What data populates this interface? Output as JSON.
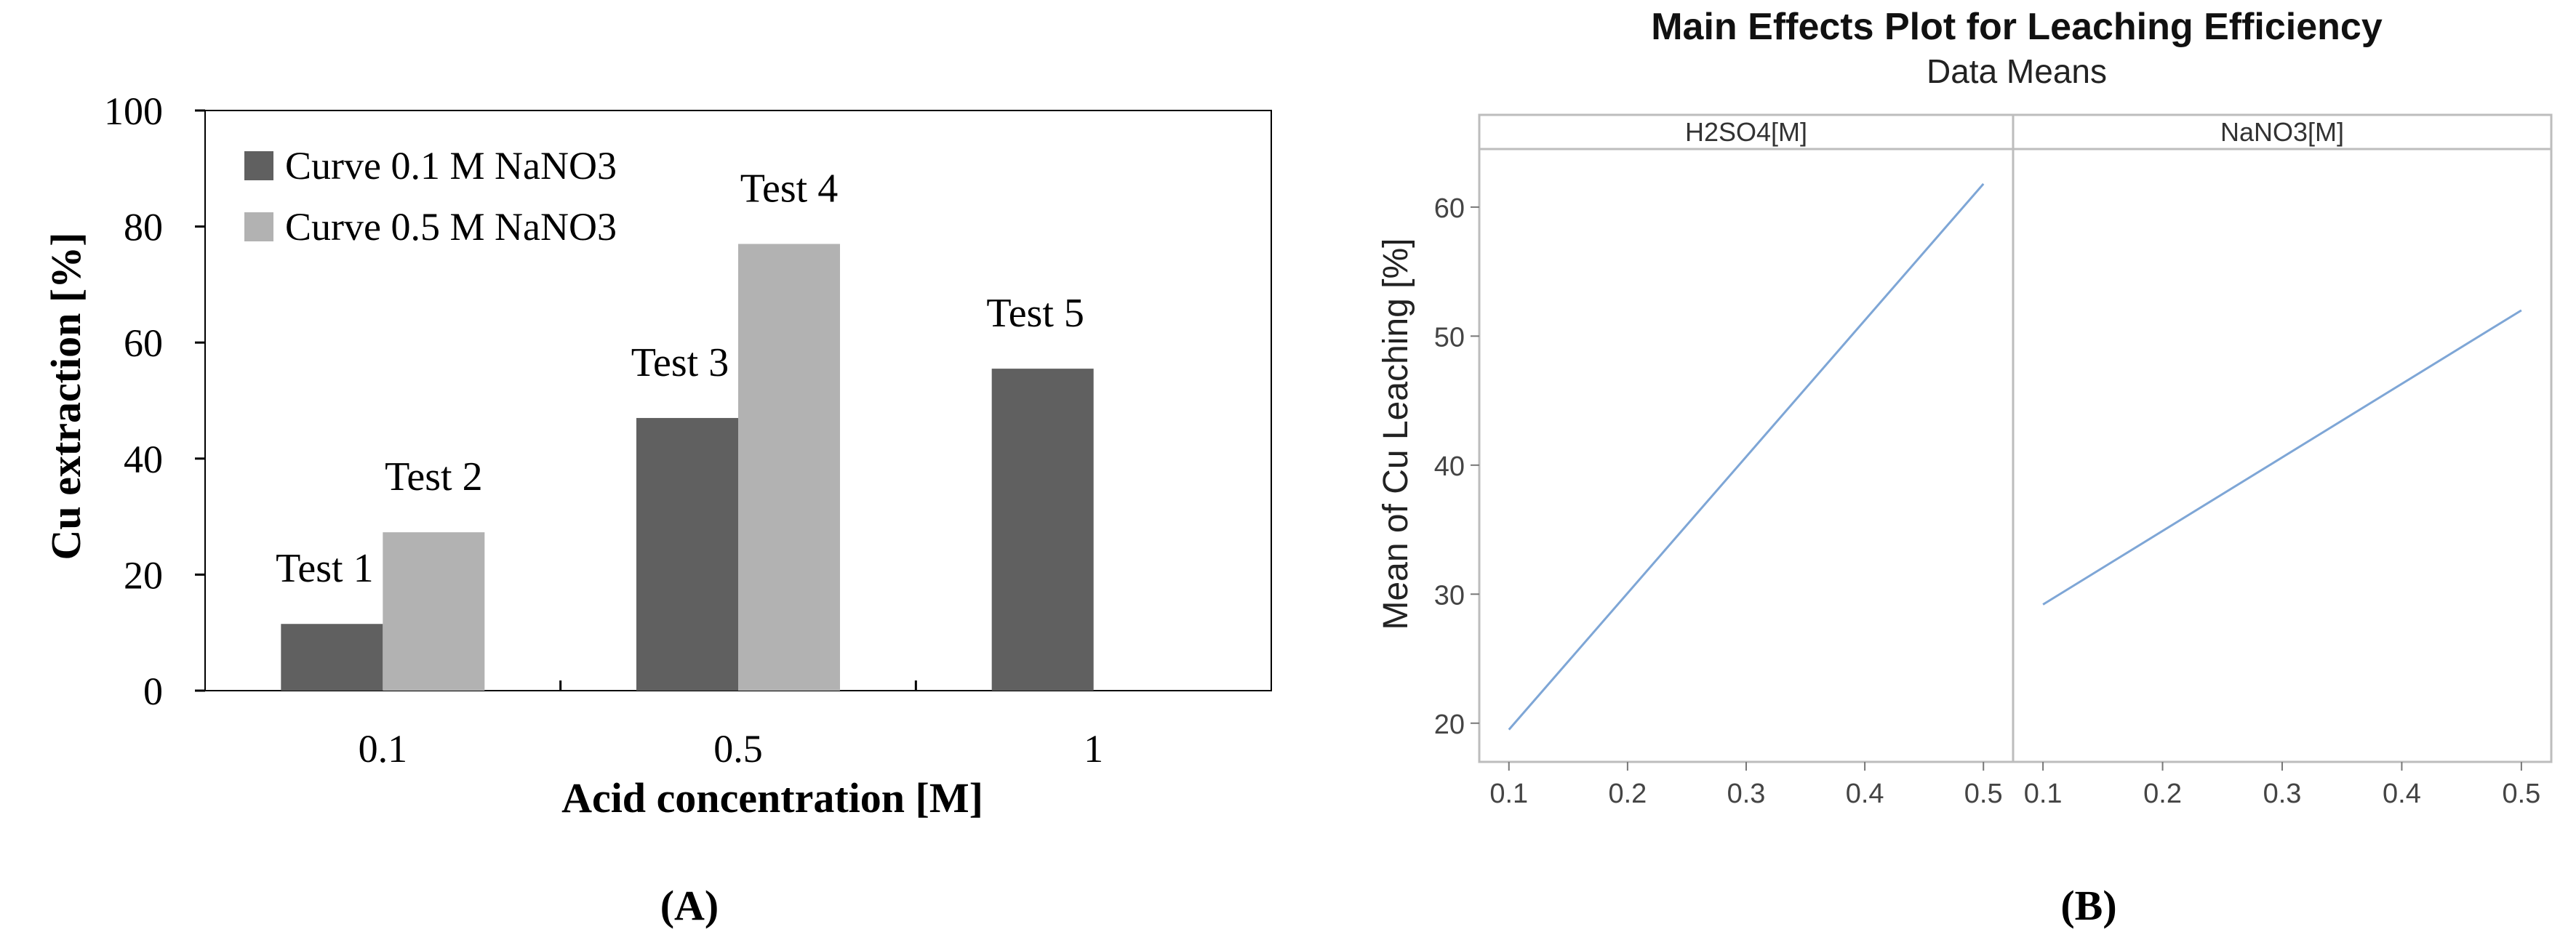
{
  "chart_data": [
    {
      "type": "bar",
      "panel_label": "(A)",
      "xlabel": "Acid concentration [M]",
      "ylabel": "Cu extraction [%]",
      "ylim": [
        0,
        100
      ],
      "yticks": [
        0,
        20,
        40,
        60,
        80,
        100
      ],
      "categories": [
        "0.1",
        "0.5",
        "1"
      ],
      "series": [
        {
          "name": "Curve 0.1 M NaNO3",
          "color": "#606060",
          "values": [
            11.5,
            47,
            55.5
          ]
        },
        {
          "name": "Curve 0.5 M NaNO3",
          "color": "#b2b2b2",
          "values": [
            27.3,
            77,
            null
          ]
        }
      ],
      "annotations": [
        {
          "text": "Test 1",
          "category": 0,
          "series": 0
        },
        {
          "text": "Test 2",
          "category": 0,
          "series": 1
        },
        {
          "text": "Test 3",
          "category": 1,
          "series": 0
        },
        {
          "text": "Test 4",
          "category": 1,
          "series": 1
        },
        {
          "text": "Test 5",
          "category": 2,
          "series": 0
        }
      ],
      "legend": "top-left"
    },
    {
      "type": "line",
      "panel_label": "(B)",
      "title": "Main Effects Plot for Leaching Efficiency",
      "subtitle": "Data Means",
      "ylabel": "Mean of Cu Leaching [%]",
      "ylim": [
        17,
        64.5
      ],
      "yticks": [
        20,
        30,
        40,
        50,
        60
      ],
      "line_color": "#7ea6d6",
      "panels": [
        {
          "name": "H2SO4[M]",
          "xlim": [
            0.075,
            0.525
          ],
          "xticks": [
            "0.1",
            "0.2",
            "0.3",
            "0.4",
            "0.5"
          ],
          "x": [
            0.1,
            0.5
          ],
          "y": [
            19.5,
            61.8
          ]
        },
        {
          "name": "NaNO3[M]",
          "xlim": [
            0.075,
            0.525
          ],
          "xticks": [
            "0.1",
            "0.2",
            "0.3",
            "0.4",
            "0.5"
          ],
          "x": [
            0.1,
            0.5
          ],
          "y": [
            29.2,
            52.0
          ]
        }
      ]
    }
  ]
}
